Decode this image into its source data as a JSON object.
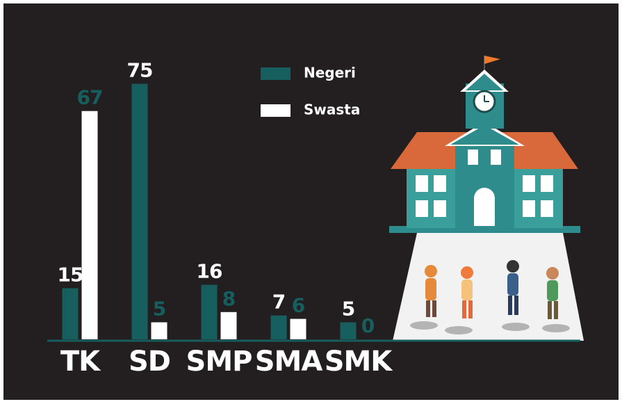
{
  "chart_data": {
    "type": "bar",
    "categories": [
      "TK",
      "SD",
      "SMP",
      "SMA",
      "SMK"
    ],
    "series": [
      {
        "name": "Negeri",
        "color": "#175e5e",
        "values": [
          15,
          75,
          16,
          7,
          5
        ]
      },
      {
        "name": "Swasta",
        "color": "#ffffff",
        "values": [
          67,
          5,
          8,
          6,
          0
        ]
      }
    ],
    "legend": "top"
  }
}
